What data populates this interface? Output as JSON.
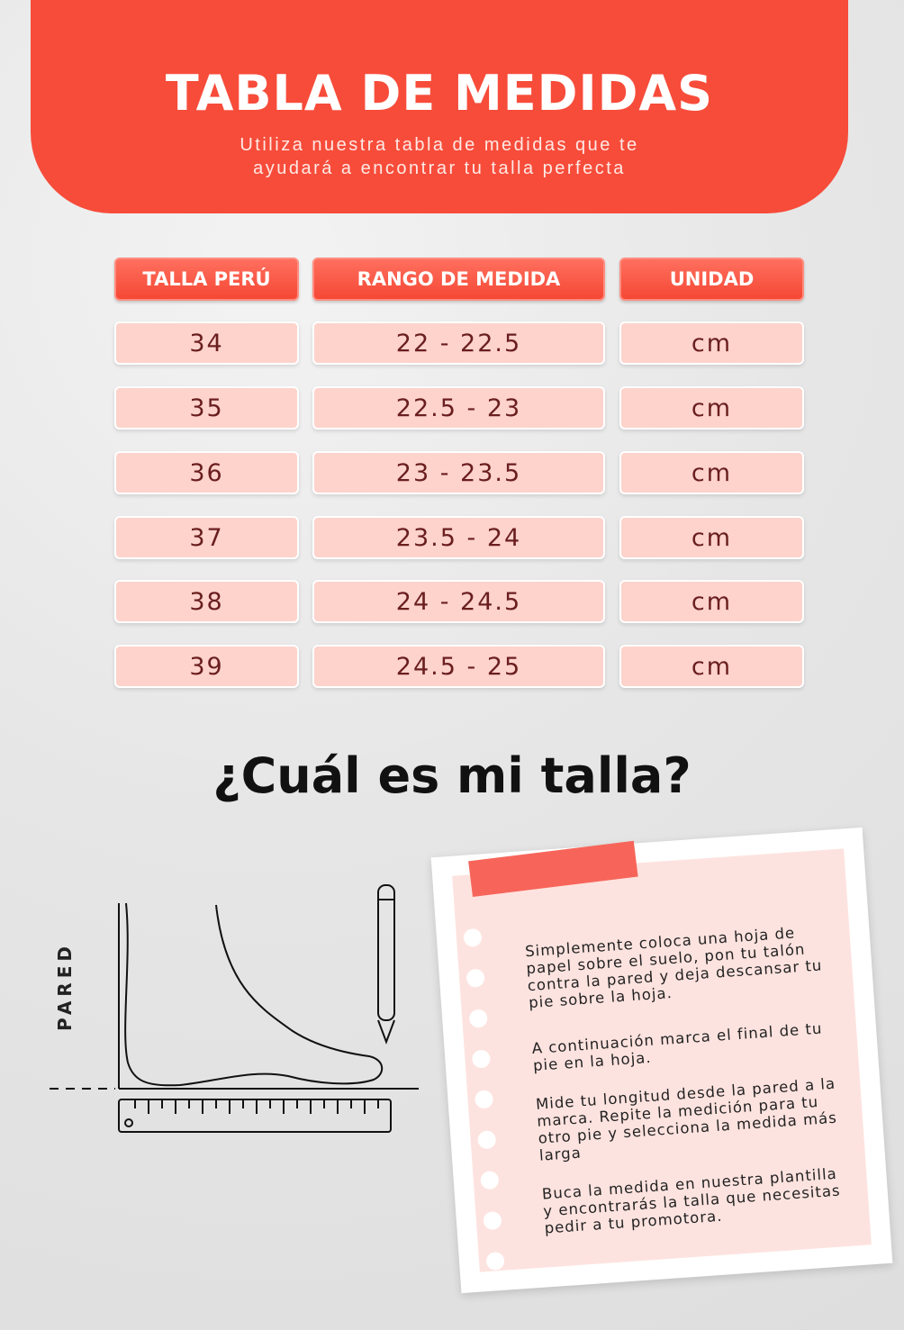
{
  "header": {
    "title": "TABLA DE MEDIDAS",
    "subtitle_line1": "Utiliza nuestra tabla de medidas que te",
    "subtitle_line2": "ayudará a encontrar tu talla perfecta"
  },
  "table": {
    "headers": [
      "TALLA PERÚ",
      "RANGO DE MEDIDA",
      "UNIDAD"
    ],
    "rows": [
      [
        "34",
        "22 - 22.5",
        "cm"
      ],
      [
        "35",
        "22.5 - 23",
        "cm"
      ],
      [
        "36",
        "23 - 23.5",
        "cm"
      ],
      [
        "37",
        "23.5 - 24",
        "cm"
      ],
      [
        "38",
        "24 - 24.5",
        "cm"
      ],
      [
        "39",
        "24.5 - 25",
        "cm"
      ]
    ]
  },
  "section_title": "¿Cuál es mi talla?",
  "diagram": {
    "wall_label": "PARED"
  },
  "instructions": [
    "Simplemente coloca una hoja de papel sobre el suelo, pon tu talón contra la pared y deja descansar tu pie sobre la hoja.",
    "A continuación marca el final de tu pie en la hoja.",
    "Mide tu longitud desde la pared a la marca. Repite la medición para tu otro pie y selecciona la medida más larga",
    "Buca la medida en nuestra plantilla y encontrarás la talla que necesitas pedir a tu promotora."
  ],
  "colors": {
    "accent": "#f74c3a",
    "cell_bg": "#fdd3cc",
    "cell_text": "#6a1e1e"
  }
}
